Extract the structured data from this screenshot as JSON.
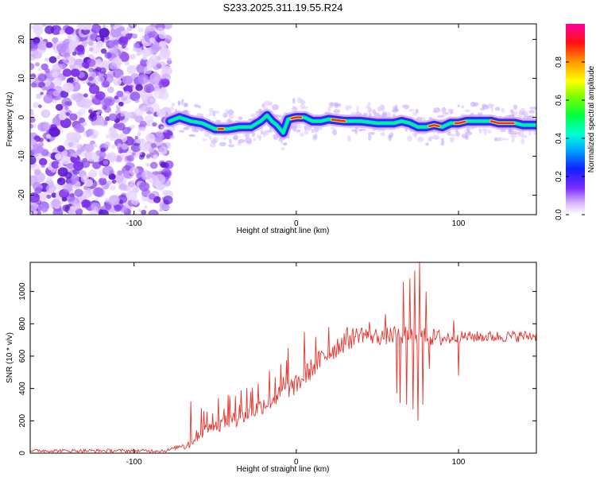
{
  "title": "S233.2025.311.19.55.R24",
  "chart_data": [
    {
      "type": "heatmap",
      "xlabel": "Height of straight line (km)",
      "ylabel": "Frequency (Hz)",
      "xlim": [
        -164,
        148
      ],
      "ylim": [
        -25,
        24
      ],
      "xticks": [
        -100,
        0,
        100
      ],
      "yticks": [
        -20,
        -10,
        0,
        10,
        20
      ],
      "noise_region_x": [
        -164,
        -78
      ],
      "ridge": {
        "x": [
          -78,
          -72,
          -65,
          -58,
          -50,
          -42,
          -35,
          -28,
          -22,
          -18,
          -15,
          -12,
          -8,
          -5,
          0,
          5,
          10,
          15,
          20,
          30,
          40,
          50,
          60,
          65,
          70,
          75,
          80,
          85,
          90,
          95,
          100,
          105,
          110,
          115,
          120,
          125,
          130,
          135,
          140,
          148
        ],
        "y": [
          -1,
          0,
          -1,
          -1.5,
          -3,
          -3,
          -2.5,
          -2.5,
          -1,
          0.5,
          -1,
          -2,
          -4,
          -0.5,
          0,
          0,
          -1,
          -1,
          -0.5,
          -1,
          -1,
          -1.5,
          -1.5,
          -1,
          -1.5,
          -2.5,
          -2.5,
          -2,
          -2.5,
          -1.5,
          -1.5,
          -1,
          -1,
          -1,
          -1,
          -1.5,
          -1.5,
          -1.5,
          -2,
          -2
        ]
      },
      "colorbar": {
        "label": "Normalized spectral amplitude",
        "ticks": [
          "0.0",
          "0.2",
          "0.4",
          "0.6",
          "0.8"
        ]
      }
    },
    {
      "type": "line",
      "xlabel": "Height of straight line (km)",
      "ylabel": "SNR (10 * v/v)",
      "xlim": [
        -164,
        148
      ],
      "ylim": [
        0,
        1180
      ],
      "xticks": [
        -100,
        0,
        100
      ],
      "yticks": [
        0,
        200,
        400,
        600,
        800,
        1000
      ],
      "color": "#e8342c",
      "trend": {
        "x": [
          -164,
          -80,
          -66,
          -60,
          -50,
          -40,
          -30,
          -20,
          -10,
          -5,
          0,
          10,
          20,
          30,
          40,
          50,
          60,
          70,
          80,
          90,
          100,
          120,
          148
        ],
        "y": [
          15,
          15,
          60,
          120,
          170,
          200,
          240,
          300,
          360,
          400,
          420,
          530,
          620,
          700,
          740,
          720,
          730,
          730,
          720,
          710,
          720,
          720,
          725
        ]
      },
      "spikes": [
        {
          "x": -65,
          "y": 320
        },
        {
          "x": -57,
          "y": 260
        },
        {
          "x": -48,
          "y": 340
        },
        {
          "x": -42,
          "y": 360
        },
        {
          "x": -35,
          "y": 300
        },
        {
          "x": -28,
          "y": 380
        },
        {
          "x": -20,
          "y": 330
        },
        {
          "x": -12,
          "y": 360
        },
        {
          "x": -8,
          "y": 470
        },
        {
          "x": -5,
          "y": 650
        },
        {
          "x": 5,
          "y": 750
        },
        {
          "x": 12,
          "y": 720
        },
        {
          "x": 20,
          "y": 780
        },
        {
          "x": 45,
          "y": 810
        },
        {
          "x": 55,
          "y": 860
        },
        {
          "x": 62,
          "y": 1130
        },
        {
          "x": 66,
          "y": 1060
        },
        {
          "x": 70,
          "y": 1080
        },
        {
          "x": 73,
          "y": 1130
        },
        {
          "x": 76,
          "y": 1190
        },
        {
          "x": 80,
          "y": 1000
        },
        {
          "x": 97,
          "y": 820
        },
        {
          "x": 100,
          "y": 650
        }
      ],
      "dips": [
        {
          "x": 62,
          "y": 370
        },
        {
          "x": 64,
          "y": 310
        },
        {
          "x": 68,
          "y": 300
        },
        {
          "x": 72,
          "y": 270
        },
        {
          "x": 75,
          "y": 200
        },
        {
          "x": 78,
          "y": 300
        },
        {
          "x": 82,
          "y": 520
        },
        {
          "x": 100,
          "y": 480
        }
      ]
    }
  ]
}
